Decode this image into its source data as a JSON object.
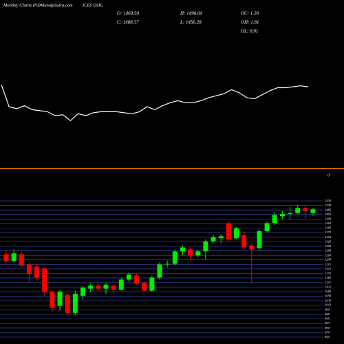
{
  "header": {
    "site": "Monthly Charts INDMunafaSutra.com",
    "symbol": "ICES DSIG",
    "stats": [
      "O: 1469.50",
      "C: 1488.37",
      "H: 1496.04",
      "L: 1456.28",
      "OC: 1.28",
      "OH: 1.81",
      "OL: 0.91"
    ]
  },
  "chart_data": [
    {
      "type": "candlestick",
      "up_color": "#00ee00",
      "down_color": "#ff0000",
      "grid": true,
      "grid_color": "#2a3f8f",
      "open": [
        1266,
        1232,
        1266,
        1215,
        1205,
        1195,
        1080,
        1010,
        1065,
        975,
        1060,
        1095,
        1110,
        1095,
        1110,
        1090,
        1140,
        1160,
        1125,
        1085,
        1150,
        1215,
        1218,
        1280,
        1290,
        1260,
        1280,
        1330,
        1345,
        1420,
        1345,
        1360,
        1310,
        1295,
        1380,
        1420,
        1455,
        1465,
        1470,
        1495,
        1469.5
      ],
      "high": [
        1283,
        1290,
        1280,
        1225,
        1215,
        1200,
        1090,
        1090,
        1075,
        1085,
        1110,
        1120,
        1120,
        1125,
        1120,
        1150,
        1175,
        1170,
        1130,
        1160,
        1225,
        1235,
        1290,
        1310,
        1300,
        1290,
        1340,
        1360,
        1365,
        1430,
        1400,
        1380,
        1320,
        1390,
        1430,
        1475,
        1480,
        1500,
        1510,
        1505,
        1496.04
      ],
      "low": [
        1225,
        1225,
        1200,
        1130,
        1140,
        1060,
        980,
        985,
        960,
        965,
        1040,
        1080,
        1085,
        1070,
        1080,
        1085,
        1130,
        1115,
        1080,
        1080,
        1140,
        1200,
        1210,
        1260,
        1240,
        1250,
        1240,
        1320,
        1320,
        1330,
        1340,
        1290,
        1120,
        1290,
        1375,
        1410,
        1440,
        1435,
        1465,
        1440,
        1456.28
      ],
      "close": [
        1232,
        1270,
        1210,
        1170,
        1150,
        1080,
        1000,
        1080,
        975,
        1070,
        1100,
        1110,
        1095,
        1115,
        1090,
        1140,
        1165,
        1120,
        1085,
        1150,
        1215,
        1218,
        1280,
        1300,
        1260,
        1280,
        1330,
        1350,
        1355,
        1340,
        1395,
        1300,
        1290,
        1380,
        1420,
        1460,
        1465,
        1470,
        1495,
        1480,
        1488.37
      ],
      "ylim": [
        855,
        1530
      ],
      "yticks": [
        855,
        878,
        900,
        923,
        945,
        968,
        990,
        1013,
        1035,
        1058,
        1080,
        1103,
        1125,
        1148,
        1170,
        1193,
        1215,
        1238,
        1260,
        1283,
        1305,
        1328,
        1350,
        1373,
        1395,
        1418,
        1440,
        1463,
        1485,
        1508,
        1530
      ]
    },
    {
      "type": "line",
      "color": "#ffffff",
      "values": [
        84,
        62,
        60,
        63,
        59,
        58,
        57,
        53,
        54,
        48,
        55,
        53,
        56,
        57,
        57,
        57,
        56,
        55,
        57,
        62,
        59,
        63,
        66,
        68,
        66,
        66,
        68,
        71,
        73,
        75,
        79,
        76,
        71,
        70,
        74,
        78,
        81,
        81,
        82,
        83,
        82
      ],
      "ylim": [
        0,
        100
      ],
      "hlines": [
        0
      ],
      "hline_color": "#ff8c00"
    }
  ]
}
